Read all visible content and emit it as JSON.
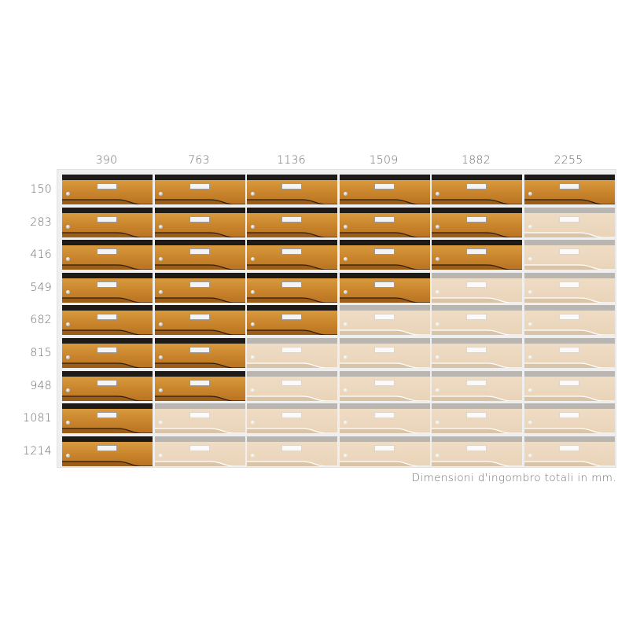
{
  "column_labels": [
    "390",
    "763",
    "1136",
    "1509",
    "1882",
    "2255"
  ],
  "row_labels": [
    "150",
    "283",
    "416",
    "549",
    "682",
    "815",
    "948",
    "1081",
    "1214"
  ],
  "filled_rows_per_column": [
    9,
    7,
    5,
    4,
    3,
    1
  ],
  "caption": "Dimensioni d'ingombro totali in mm.",
  "colors": {
    "wood": "#c8832b",
    "slot": "#1e1a17",
    "empty_front": "#ecd8be",
    "frame": "#efefef"
  },
  "icons": {
    "lock": "lock-icon",
    "name_plate": "name-plate-icon"
  }
}
